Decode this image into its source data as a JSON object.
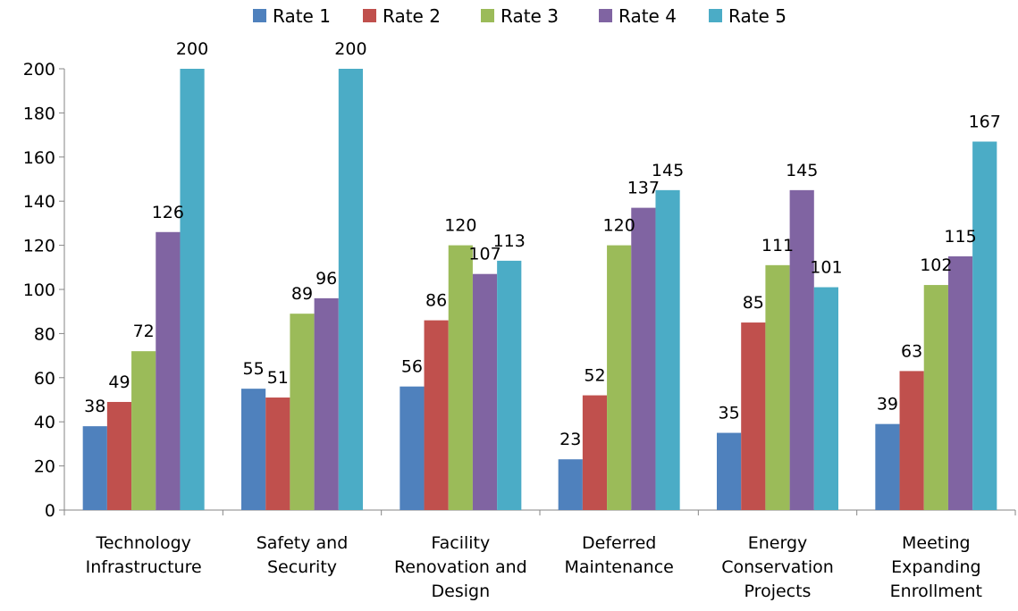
{
  "chart_data": {
    "type": "bar",
    "categories": [
      [
        "Technology",
        "Infrastructure"
      ],
      [
        "Safety and",
        "Security"
      ],
      [
        "Facility",
        "Renovation and",
        "Design"
      ],
      [
        "Deferred",
        "Maintenance"
      ],
      [
        "Energy",
        "Conservation",
        "Projects"
      ],
      [
        "Meeting",
        "Expanding",
        "Enrollment"
      ]
    ],
    "series": [
      {
        "name": "Rate 1",
        "color": "#4F81BD",
        "values": [
          38,
          55,
          56,
          23,
          35,
          39
        ]
      },
      {
        "name": "Rate 2",
        "color": "#C0504D",
        "values": [
          49,
          51,
          86,
          52,
          85,
          63
        ]
      },
      {
        "name": "Rate 3",
        "color": "#9BBB59",
        "values": [
          72,
          89,
          120,
          120,
          111,
          102
        ]
      },
      {
        "name": "Rate 4",
        "color": "#8064A2",
        "values": [
          126,
          96,
          107,
          137,
          145,
          115
        ]
      },
      {
        "name": "Rate 5",
        "color": "#4BACC6",
        "values": [
          200,
          200,
          113,
          145,
          101,
          167
        ]
      }
    ],
    "yticks": [
      "0",
      "20",
      "40",
      "60",
      "80",
      "100",
      "120",
      "140",
      "160",
      "180",
      "200"
    ],
    "ylim": [
      0,
      200
    ],
    "legend_position": "top",
    "grid": false,
    "data_labels": true
  }
}
